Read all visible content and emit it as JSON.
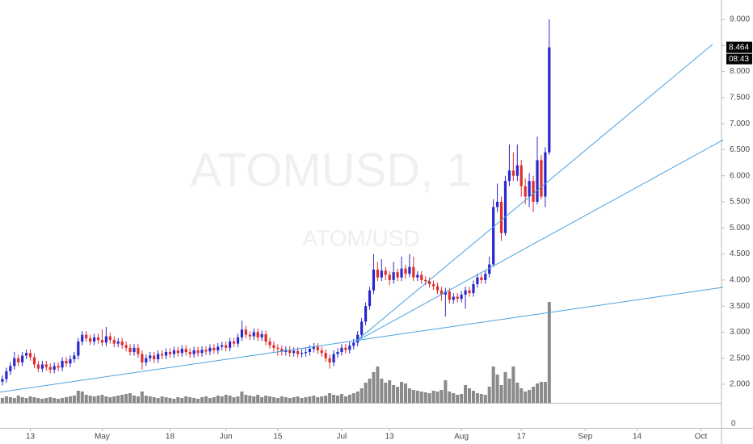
{
  "chart_data": {
    "type": "candlestick",
    "watermark": "ATOMUSD, 1",
    "watermark_subtitle": "ATOM/USD",
    "up_color": "#2828d0",
    "down_color": "#e02c2c",
    "volume_color": "#8a8a8a",
    "trendline_color": "#4aa3df",
    "xlim": [
      -0.6,
      180.15
    ],
    "ylim": [
      1.644,
      9.372
    ],
    "volume_lim": [
      0,
      130
    ],
    "xticks": [
      {
        "value": 7,
        "label": "13"
      },
      {
        "value": 25,
        "label": "May"
      },
      {
        "value": 42,
        "label": "18"
      },
      {
        "value": 56,
        "label": "Jun"
      },
      {
        "value": 69,
        "label": "15"
      },
      {
        "value": 85,
        "label": "Jul"
      },
      {
        "value": 97,
        "label": "13"
      },
      {
        "value": 115,
        "label": "Aug"
      },
      {
        "value": 130,
        "label": "17"
      },
      {
        "value": 146,
        "label": "Sep"
      },
      {
        "value": 159,
        "label": "14"
      },
      {
        "value": 175,
        "label": "Oct"
      }
    ],
    "yticks": [
      {
        "value": 2,
        "label": "2.000"
      },
      {
        "value": 2.5,
        "label": "2.500"
      },
      {
        "value": 3,
        "label": "3.000"
      },
      {
        "value": 3.5,
        "label": "3.500"
      },
      {
        "value": 4,
        "label": "4.000"
      },
      {
        "value": 4.5,
        "label": "4.500"
      },
      {
        "value": 5,
        "label": "5.000"
      },
      {
        "value": 5.5,
        "label": "5.500"
      },
      {
        "value": 6,
        "label": "6.000"
      },
      {
        "value": 6.5,
        "label": "6.500"
      },
      {
        "value": 7,
        "label": "7.000"
      },
      {
        "value": 7.5,
        "label": "7.500"
      },
      {
        "value": 8,
        "label": "8.000"
      },
      {
        "value": 8.5,
        "label": "8.500"
      },
      {
        "value": 9,
        "label": "9.000"
      }
    ],
    "last_price": {
      "value": 8.464,
      "label": "8.464"
    },
    "countdown": "08:43",
    "indicator_yticks": [
      0
    ],
    "open": [
      2.05,
      2.1,
      2.25,
      2.35,
      2.5,
      2.42,
      2.55,
      2.6,
      2.52,
      2.38,
      2.3,
      2.38,
      2.33,
      2.28,
      2.35,
      2.32,
      2.45,
      2.4,
      2.48,
      2.55,
      2.82,
      2.95,
      2.88,
      2.82,
      2.9,
      2.85,
      2.8,
      2.92,
      2.85,
      2.78,
      2.82,
      2.75,
      2.7,
      2.62,
      2.7,
      2.58,
      2.42,
      2.5,
      2.55,
      2.48,
      2.58,
      2.55,
      2.62,
      2.58,
      2.65,
      2.6,
      2.68,
      2.62,
      2.58,
      2.65,
      2.6,
      2.66,
      2.63,
      2.7,
      2.65,
      2.72,
      2.75,
      2.7,
      2.82,
      2.78,
      2.9,
      3.05,
      2.95,
      2.92,
      3.0,
      2.9,
      2.96,
      2.82,
      2.75,
      2.7,
      2.68,
      2.62,
      2.66,
      2.6,
      2.64,
      2.58,
      2.6,
      2.62,
      2.68,
      2.72,
      2.65,
      2.6,
      2.5,
      2.42,
      2.58,
      2.62,
      2.7,
      2.66,
      2.74,
      2.8,
      2.95,
      3.2,
      3.5,
      3.8,
      4.2,
      4.05,
      4.18,
      4.1,
      4.0,
      4.15,
      4.05,
      4.22,
      4.12,
      4.25,
      4.05,
      4.1,
      4.0,
      3.98,
      3.92,
      3.88,
      3.8,
      3.72,
      3.78,
      3.62,
      3.68,
      3.64,
      3.72,
      3.8,
      3.75,
      3.92,
      4.05,
      4.0,
      4.12,
      4.3,
      5.4,
      5.5,
      4.9,
      5.9,
      6.1,
      6.0,
      6.2,
      5.8,
      5.6,
      5.9,
      5.5,
      6.3,
      5.6,
      6.45
    ],
    "high": [
      2.17,
      2.32,
      2.42,
      2.62,
      2.57,
      2.62,
      2.67,
      2.67,
      2.59,
      2.45,
      2.45,
      2.45,
      2.4,
      2.42,
      2.42,
      2.52,
      2.52,
      2.55,
      2.62,
      2.89,
      3.02,
      3.02,
      2.95,
      2.97,
      2.97,
      3.05,
      3.1,
      2.99,
      2.92,
      2.89,
      2.89,
      2.82,
      2.77,
      2.77,
      2.77,
      2.65,
      2.57,
      2.62,
      2.62,
      2.65,
      2.65,
      2.69,
      2.69,
      2.72,
      2.72,
      2.75,
      2.75,
      2.69,
      2.72,
      2.72,
      2.73,
      2.73,
      2.77,
      2.77,
      2.79,
      2.82,
      2.82,
      2.89,
      2.89,
      2.97,
      3.22,
      3.12,
      3.02,
      3.07,
      3.07,
      3.03,
      3.03,
      2.89,
      2.82,
      2.77,
      2.75,
      2.73,
      2.73,
      2.71,
      2.71,
      2.67,
      2.69,
      2.75,
      2.79,
      2.79,
      2.72,
      2.67,
      2.57,
      2.65,
      2.69,
      2.77,
      2.77,
      2.81,
      2.87,
      3.02,
      3.27,
      3.57,
      3.87,
      4.5,
      4.35,
      4.4,
      4.25,
      4.17,
      4.35,
      4.22,
      4.45,
      4.29,
      4.5,
      4.45,
      4.17,
      4.17,
      4.07,
      4.05,
      3.99,
      3.95,
      3.87,
      3.85,
      3.85,
      3.75,
      3.75,
      3.79,
      3.87,
      3.87,
      3.99,
      4.12,
      4.12,
      4.19,
      4.45,
      5.55,
      5.85,
      5.6,
      6.0,
      6.6,
      6.45,
      6.6,
      6.3,
      5.95,
      6.05,
      6.0,
      6.75,
      6.4,
      6.55,
      9.0
    ],
    "low": [
      1.98,
      2.03,
      2.18,
      2.28,
      2.35,
      2.35,
      2.48,
      2.45,
      2.31,
      2.23,
      2.23,
      2.26,
      2.21,
      2.21,
      2.25,
      2.25,
      2.33,
      2.33,
      2.41,
      2.48,
      2.75,
      2.81,
      2.75,
      2.75,
      2.78,
      2.73,
      2.73,
      2.78,
      2.71,
      2.71,
      2.68,
      2.63,
      2.55,
      2.55,
      2.51,
      2.28,
      2.35,
      2.43,
      2.41,
      2.41,
      2.48,
      2.48,
      2.51,
      2.51,
      2.53,
      2.53,
      2.55,
      2.51,
      2.51,
      2.53,
      2.53,
      2.56,
      2.56,
      2.58,
      2.58,
      2.65,
      2.63,
      2.63,
      2.71,
      2.71,
      2.83,
      2.88,
      2.85,
      2.85,
      2.83,
      2.83,
      2.75,
      2.68,
      2.63,
      2.55,
      2.55,
      2.55,
      2.53,
      2.53,
      2.51,
      2.51,
      2.53,
      2.55,
      2.61,
      2.58,
      2.53,
      2.43,
      2.3,
      2.35,
      2.51,
      2.55,
      2.59,
      2.59,
      2.67,
      2.73,
      2.88,
      3.13,
      3.43,
      3.73,
      3.98,
      3.98,
      4.0,
      3.9,
      3.93,
      3.98,
      3.98,
      4.02,
      4.05,
      3.98,
      3.98,
      3.93,
      3.9,
      3.85,
      3.81,
      3.73,
      3.6,
      3.3,
      3.55,
      3.55,
      3.57,
      3.57,
      3.45,
      3.68,
      3.68,
      3.85,
      3.93,
      3.93,
      4.05,
      4.25,
      5.3,
      4.75,
      4.85,
      5.8,
      5.9,
      5.9,
      5.6,
      5.45,
      5.4,
      5.3,
      5.45,
      5.55,
      5.4,
      6.4
    ],
    "close": [
      2.1,
      2.25,
      2.35,
      2.5,
      2.42,
      2.55,
      2.6,
      2.52,
      2.38,
      2.3,
      2.38,
      2.33,
      2.28,
      2.35,
      2.32,
      2.45,
      2.4,
      2.48,
      2.55,
      2.82,
      2.95,
      2.88,
      2.82,
      2.9,
      2.85,
      2.8,
      2.92,
      2.85,
      2.78,
      2.82,
      2.75,
      2.7,
      2.62,
      2.7,
      2.58,
      2.42,
      2.5,
      2.55,
      2.48,
      2.58,
      2.55,
      2.62,
      2.58,
      2.65,
      2.6,
      2.68,
      2.62,
      2.58,
      2.65,
      2.6,
      2.66,
      2.63,
      2.7,
      2.65,
      2.72,
      2.75,
      2.7,
      2.82,
      2.78,
      2.9,
      3.05,
      2.95,
      2.92,
      3.0,
      2.9,
      2.96,
      2.82,
      2.75,
      2.7,
      2.68,
      2.62,
      2.66,
      2.6,
      2.64,
      2.58,
      2.6,
      2.62,
      2.68,
      2.72,
      2.65,
      2.6,
      2.5,
      2.42,
      2.58,
      2.62,
      2.7,
      2.66,
      2.74,
      2.8,
      2.95,
      3.2,
      3.5,
      3.8,
      4.2,
      4.05,
      4.18,
      4.1,
      4.0,
      4.15,
      4.05,
      4.22,
      4.12,
      4.25,
      4.05,
      4.1,
      4.0,
      3.98,
      3.92,
      3.88,
      3.8,
      3.72,
      3.78,
      3.62,
      3.68,
      3.64,
      3.72,
      3.8,
      3.75,
      3.92,
      4.05,
      4.0,
      4.12,
      4.3,
      5.4,
      5.5,
      4.9,
      5.9,
      6.1,
      6.0,
      6.2,
      5.8,
      5.6,
      5.9,
      5.5,
      6.3,
      5.6,
      6.45,
      8.464
    ],
    "volume": [
      6,
      8,
      7,
      6,
      9,
      7,
      6,
      8,
      7,
      6,
      5,
      6,
      7,
      6,
      5,
      6,
      7,
      8,
      9,
      15,
      14,
      10,
      9,
      8,
      9,
      10,
      8,
      7,
      8,
      9,
      10,
      11,
      12,
      9,
      8,
      14,
      9,
      8,
      7,
      6,
      8,
      7,
      6,
      5,
      7,
      6,
      8,
      7,
      6,
      5,
      7,
      8,
      6,
      7,
      9,
      8,
      10,
      9,
      7,
      8,
      14,
      10,
      9,
      8,
      10,
      7,
      9,
      8,
      7,
      6,
      8,
      7,
      6,
      7,
      8,
      6,
      7,
      8,
      9,
      7,
      8,
      9,
      12,
      10,
      9,
      11,
      8,
      10,
      12,
      14,
      18,
      25,
      30,
      38,
      45,
      30,
      25,
      28,
      22,
      20,
      26,
      24,
      18,
      16,
      15,
      14,
      13,
      12,
      15,
      14,
      16,
      28,
      14,
      12,
      10,
      11,
      22,
      18,
      15,
      12,
      11,
      10,
      20,
      45,
      35,
      22,
      38,
      30,
      45,
      25,
      18,
      14,
      16,
      20,
      24,
      26,
      26,
      125
    ],
    "trendlines": [
      {
        "points": [
          [
            -0.6,
            1.85
          ],
          [
            180.6,
            3.86
          ]
        ]
      },
      {
        "points": [
          [
            88.5,
            2.82
          ],
          [
            180.6,
            6.69
          ]
        ]
      },
      {
        "points": [
          [
            88.5,
            2.82
          ],
          [
            177.9,
            8.52
          ]
        ]
      }
    ]
  }
}
